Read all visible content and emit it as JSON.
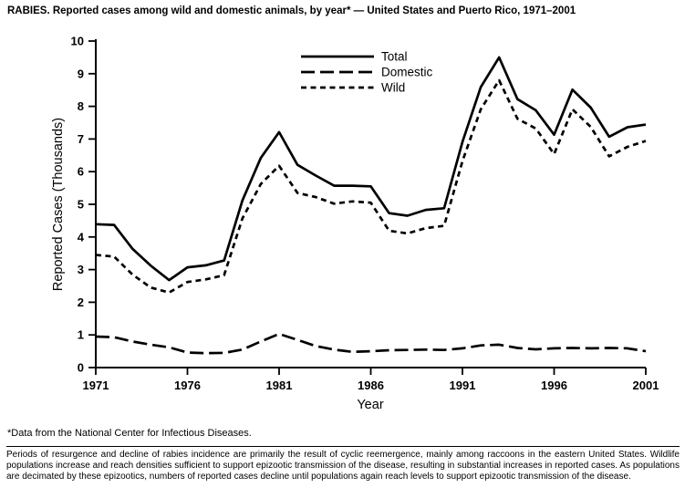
{
  "title": "RABIES. Reported cases among wild and domestic animals, by year* — United States and Puerto Rico, 1971–2001",
  "footnote": "*Data from the National Center for Infectious Diseases.",
  "caption": "Periods of resurgence and decline of rabies incidence are primarily the result of cyclic reemergence, mainly among raccoons in the eastern United States. Wildlife populations increase and reach densities sufficient to support epizootic transmission of the disease, resulting in substantial increases in reported cases. As populations are decimated by these epizootics, numbers of reported cases decline until populations again reach levels to support epizootic transmission of the disease.",
  "chart_data": {
    "type": "line",
    "title": "",
    "xlabel": "Year",
    "ylabel": "Reported Cases (Thousands)",
    "ylim": [
      0,
      10
    ],
    "yticks": [
      0,
      1,
      2,
      3,
      4,
      5,
      6,
      7,
      8,
      9,
      10
    ],
    "xticks": [
      1971,
      1976,
      1981,
      1986,
      1991,
      1996,
      2001
    ],
    "grid": false,
    "legend_position": "inside-top-center",
    "line_color": "#000000",
    "background": "#ffffff",
    "x": [
      1971,
      1972,
      1973,
      1974,
      1975,
      1976,
      1977,
      1978,
      1979,
      1980,
      1981,
      1982,
      1983,
      1984,
      1985,
      1986,
      1987,
      1988,
      1989,
      1990,
      1991,
      1992,
      1993,
      1994,
      1995,
      1996,
      1997,
      1998,
      1999,
      2000,
      2001
    ],
    "series": [
      {
        "name": "Total",
        "style": "solid",
        "values": [
          4.39,
          4.37,
          3.64,
          3.12,
          2.68,
          3.07,
          3.13,
          3.28,
          5.12,
          6.42,
          7.21,
          6.21,
          5.88,
          5.57,
          5.57,
          5.55,
          4.73,
          4.65,
          4.83,
          4.88,
          6.91,
          8.59,
          9.5,
          8.22,
          7.88,
          7.13,
          8.51,
          7.96,
          7.07,
          7.36,
          7.44
        ]
      },
      {
        "name": "Domestic",
        "style": "long-dash",
        "values": [
          0.95,
          0.93,
          0.8,
          0.7,
          0.62,
          0.46,
          0.44,
          0.45,
          0.55,
          0.8,
          1.03,
          0.85,
          0.66,
          0.55,
          0.48,
          0.5,
          0.53,
          0.54,
          0.55,
          0.54,
          0.59,
          0.68,
          0.7,
          0.6,
          0.56,
          0.59,
          0.6,
          0.59,
          0.6,
          0.59,
          0.5
        ]
      },
      {
        "name": "Wild",
        "style": "short-dash",
        "values": [
          3.45,
          3.4,
          2.85,
          2.45,
          2.3,
          2.62,
          2.7,
          2.83,
          4.57,
          5.62,
          6.18,
          5.35,
          5.22,
          5.02,
          5.09,
          5.05,
          4.19,
          4.11,
          4.27,
          4.34,
          6.32,
          7.91,
          8.8,
          7.62,
          7.32,
          6.54,
          7.91,
          7.37,
          6.47,
          6.76,
          6.94
        ]
      }
    ]
  }
}
